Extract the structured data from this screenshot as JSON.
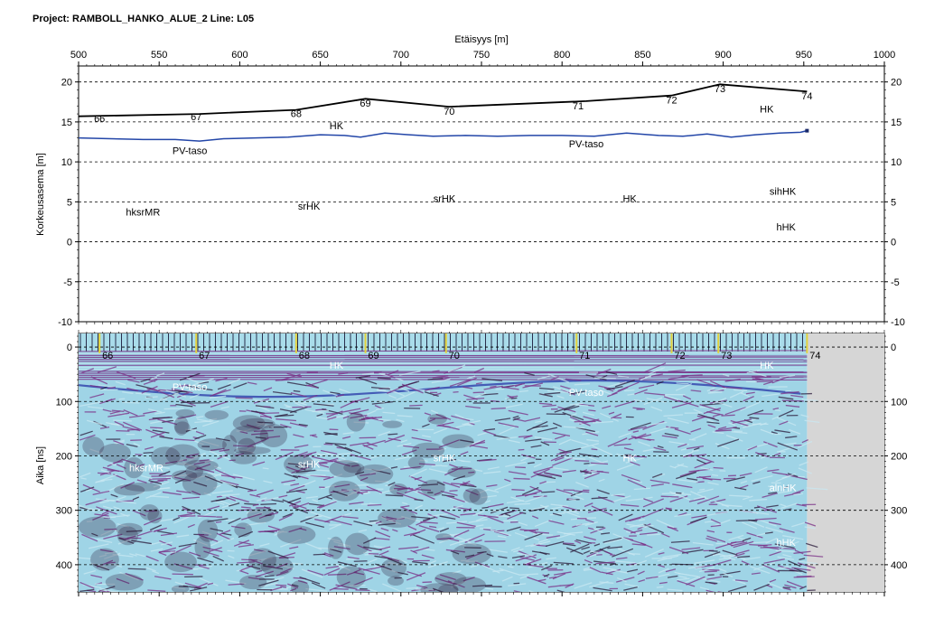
{
  "header": {
    "project_title": "Project: RAMBOLL_HANKO_ALUE_2  Line: L05"
  },
  "colors": {
    "surface_line": "#000000",
    "water_table_line": "#2346a8",
    "radargram_magenta": "#7a2f86",
    "radargram_light": "#9fd4e6",
    "radargram_dark": "#2a1a3a",
    "marker_line": "#e3d23c",
    "no_data_fill": "#d6d6d6",
    "band_fill": "#a9dcea"
  },
  "chart_data": [
    {
      "type": "line",
      "panel": "elevation-profile",
      "xlabel": "Etäisyys [m]",
      "ylabel": "Korkeusasema [m]",
      "xlim": [
        500,
        1000
      ],
      "ylim": [
        -10,
        22
      ],
      "x_ticks": [
        500,
        550,
        600,
        650,
        700,
        750,
        800,
        850,
        900,
        950,
        1000
      ],
      "y_ticks": [
        20,
        15,
        10,
        5,
        0,
        -5,
        -10
      ],
      "grid": "horizontal-dashed",
      "series": [
        {
          "role": "surface",
          "x": [
            500,
            575,
            635,
            678,
            730,
            815,
            868,
            898,
            952
          ],
          "y": [
            15.7,
            16.0,
            16.5,
            17.9,
            16.9,
            17.6,
            18.3,
            19.7,
            18.8
          ]
        },
        {
          "name": "PV-taso",
          "role": "water-table",
          "x": [
            500,
            520,
            540,
            560,
            575,
            590,
            610,
            630,
            650,
            665,
            675,
            690,
            705,
            720,
            740,
            760,
            780,
            800,
            820,
            840,
            860,
            875,
            890,
            905,
            920,
            935,
            948,
            952
          ],
          "y": [
            13.0,
            12.9,
            12.8,
            12.8,
            12.6,
            12.9,
            13.0,
            13.1,
            13.4,
            13.3,
            13.1,
            13.6,
            13.4,
            13.2,
            13.3,
            13.2,
            13.3,
            13.3,
            13.2,
            13.6,
            13.3,
            13.2,
            13.5,
            13.1,
            13.4,
            13.6,
            13.7,
            13.9
          ]
        }
      ],
      "markers": [
        {
          "label": "66",
          "x": 513,
          "y": 15.0
        },
        {
          "label": "67",
          "x": 573,
          "y": 15.2
        },
        {
          "label": "68",
          "x": 635,
          "y": 15.6
        },
        {
          "label": "69",
          "x": 678,
          "y": 16.9
        },
        {
          "label": "70",
          "x": 730,
          "y": 15.9
        },
        {
          "label": "71",
          "x": 810,
          "y": 16.6
        },
        {
          "label": "72",
          "x": 868,
          "y": 17.3
        },
        {
          "label": "73",
          "x": 898,
          "y": 18.7
        },
        {
          "label": "74",
          "x": 952,
          "y": 17.8
        }
      ],
      "annotations": [
        {
          "text": "HK",
          "x": 660,
          "y": 14.1
        },
        {
          "text": "HK",
          "x": 927,
          "y": 16.2
        },
        {
          "text": "PV-taso",
          "x": 569,
          "y": 11.0
        },
        {
          "text": "PV-taso",
          "x": 815,
          "y": 11.8
        },
        {
          "text": "hksrMR",
          "x": 540,
          "y": 3.3
        },
        {
          "text": "srHK",
          "x": 643,
          "y": 4.0
        },
        {
          "text": "srHK",
          "x": 727,
          "y": 5.0
        },
        {
          "text": "HK",
          "x": 842,
          "y": 5.0
        },
        {
          "text": "sihHK",
          "x": 937,
          "y": 5.9
        },
        {
          "text": "hHK",
          "x": 939,
          "y": 1.4
        }
      ]
    },
    {
      "type": "heatmap",
      "panel": "gpr-radargram",
      "ylabel": "Aika [ns]",
      "xlim": [
        500,
        1000
      ],
      "ylim": [
        -25,
        450
      ],
      "y_ticks": [
        0,
        100,
        200,
        300,
        400
      ],
      "data_extent_x": [
        500,
        952
      ],
      "grid": "horizontal-dashed",
      "markers": [
        {
          "label": "66",
          "x": 513
        },
        {
          "label": "67",
          "x": 573
        },
        {
          "label": "68",
          "x": 635
        },
        {
          "label": "69",
          "x": 678
        },
        {
          "label": "70",
          "x": 728
        },
        {
          "label": "71",
          "x": 809
        },
        {
          "label": "72",
          "x": 868
        },
        {
          "label": "73",
          "x": 897
        },
        {
          "label": "74",
          "x": 952
        }
      ],
      "annotations": [
        {
          "text": "HK",
          "x": 660,
          "y": 40
        },
        {
          "text": "HK",
          "x": 927,
          "y": 40
        },
        {
          "text": "PV-taso",
          "x": 569,
          "y": 80
        },
        {
          "text": "PV-taso",
          "x": 815,
          "y": 90
        },
        {
          "text": "hksrMR",
          "x": 542,
          "y": 228
        },
        {
          "text": "srHK",
          "x": 643,
          "y": 222
        },
        {
          "text": "srHK",
          "x": 727,
          "y": 210
        },
        {
          "text": "HK",
          "x": 842,
          "y": 210
        },
        {
          "text": "alnHK",
          "x": 937,
          "y": 265
        },
        {
          "text": "hHK",
          "x": 939,
          "y": 365
        }
      ]
    }
  ]
}
